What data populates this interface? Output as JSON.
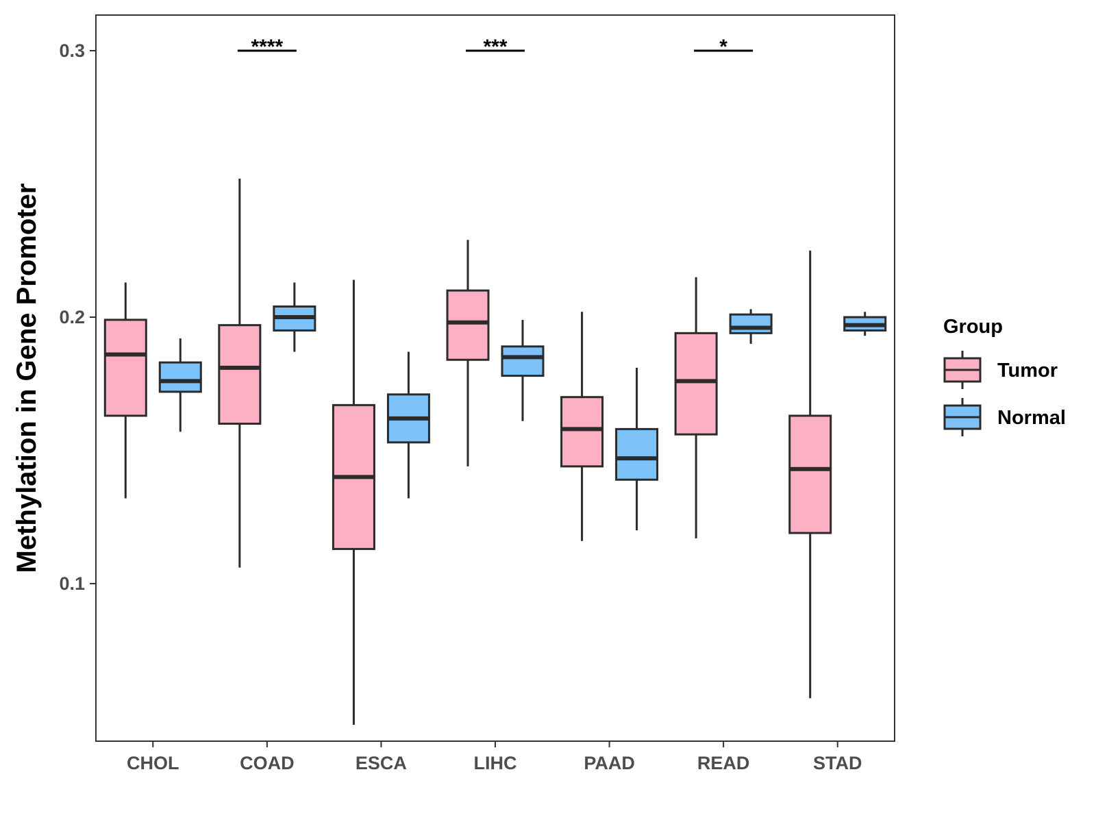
{
  "chart_data": {
    "type": "boxplot",
    "ylabel": "Methylation in Gene Promoter",
    "xlabel": "",
    "ylim": [
      0.041,
      0.313
    ],
    "yticks": [
      0.1,
      0.2,
      0.3
    ],
    "ytick_labels": [
      "0.1",
      "0.2",
      "0.3"
    ],
    "categories": [
      "CHOL",
      "COAD",
      "ESCA",
      "LIHC",
      "PAAD",
      "READ",
      "STAD"
    ],
    "legend": {
      "title": "Group",
      "position": "right",
      "entries": [
        {
          "name": "Tumor",
          "color": "#FBB1C3"
        },
        {
          "name": "Normal",
          "color": "#7CC1F8"
        }
      ]
    },
    "series": [
      {
        "name": "Tumor",
        "color": "#FBB1C3",
        "boxes": [
          {
            "category": "CHOL",
            "min": 0.132,
            "q1": 0.163,
            "median": 0.186,
            "q3": 0.199,
            "max": 0.213
          },
          {
            "category": "COAD",
            "min": 0.106,
            "q1": 0.16,
            "median": 0.181,
            "q3": 0.197,
            "max": 0.252
          },
          {
            "category": "ESCA",
            "min": 0.047,
            "q1": 0.113,
            "median": 0.14,
            "q3": 0.167,
            "max": 0.214
          },
          {
            "category": "LIHC",
            "min": 0.144,
            "q1": 0.184,
            "median": 0.198,
            "q3": 0.21,
            "max": 0.229
          },
          {
            "category": "PAAD",
            "min": 0.116,
            "q1": 0.144,
            "median": 0.158,
            "q3": 0.17,
            "max": 0.202
          },
          {
            "category": "READ",
            "min": 0.117,
            "q1": 0.156,
            "median": 0.176,
            "q3": 0.194,
            "max": 0.215
          },
          {
            "category": "STAD",
            "min": 0.057,
            "q1": 0.119,
            "median": 0.143,
            "q3": 0.163,
            "max": 0.225
          }
        ]
      },
      {
        "name": "Normal",
        "color": "#7CC1F8",
        "boxes": [
          {
            "category": "CHOL",
            "min": 0.157,
            "q1": 0.172,
            "median": 0.176,
            "q3": 0.183,
            "max": 0.192
          },
          {
            "category": "COAD",
            "min": 0.187,
            "q1": 0.195,
            "median": 0.2,
            "q3": 0.204,
            "max": 0.213
          },
          {
            "category": "ESCA",
            "min": 0.132,
            "q1": 0.153,
            "median": 0.162,
            "q3": 0.171,
            "max": 0.187
          },
          {
            "category": "LIHC",
            "min": 0.161,
            "q1": 0.178,
            "median": 0.185,
            "q3": 0.189,
            "max": 0.199
          },
          {
            "category": "PAAD",
            "min": 0.12,
            "q1": 0.139,
            "median": 0.147,
            "q3": 0.158,
            "max": 0.181
          },
          {
            "category": "READ",
            "min": 0.19,
            "q1": 0.194,
            "median": 0.196,
            "q3": 0.201,
            "max": 0.203
          },
          {
            "category": "STAD",
            "min": 0.193,
            "q1": 0.195,
            "median": 0.197,
            "q3": 0.2,
            "max": 0.202
          }
        ]
      }
    ],
    "significance": [
      {
        "category": "COAD",
        "label": "****",
        "y": 0.3
      },
      {
        "category": "LIHC",
        "label": "***",
        "y": 0.3
      },
      {
        "category": "READ",
        "label": "*",
        "y": 0.3
      }
    ]
  }
}
